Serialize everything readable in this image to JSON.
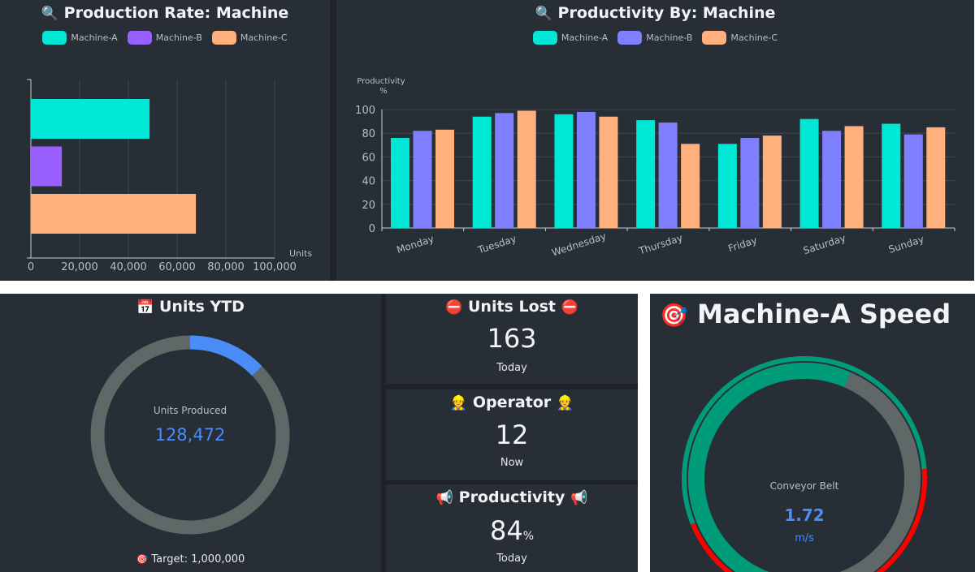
{
  "colors": {
    "machine_a": "#00e8d5",
    "machine_b_rate": "#9960ff",
    "machine_b_prod": "#7f80ff",
    "machine_c": "#ffb07d",
    "panel_bg": "#272e35",
    "accent_blue": "#4a8df8",
    "ring_gray": "#5f6767",
    "gauge_green": "#009c7a",
    "gauge_red": "#ff0000"
  },
  "production_rate": {
    "title": "Production Rate: Machine",
    "title_icon": "magnifier-icon",
    "legend": [
      "Machine-A",
      "Machine-B",
      "Machine-C"
    ]
  },
  "productivity_by": {
    "title": "Productivity By: Machine",
    "title_icon": "magnifier-icon",
    "legend": [
      "Machine-A",
      "Machine-B",
      "Machine-C"
    ]
  },
  "chart_data": [
    {
      "type": "bar",
      "orientation": "horizontal",
      "title": "Production Rate: Machine",
      "categories": [
        "Machine-A",
        "Machine-B",
        "Machine-C"
      ],
      "values": [
        48700,
        12700,
        67700
      ],
      "xlabel": "Units",
      "ylabel": "",
      "xlim": [
        0,
        100000
      ],
      "xticks": [
        "0",
        "20,000",
        "40,000",
        "60,000",
        "80,000",
        "100,000"
      ],
      "grid": true,
      "legend": "top-center"
    },
    {
      "type": "bar",
      "orientation": "vertical",
      "title": "Productivity By: Machine",
      "categories": [
        "Monday",
        "Tuesday",
        "Wednesday",
        "Thursday",
        "Friday",
        "Saturday",
        "Sunday"
      ],
      "series": [
        {
          "name": "Machine-A",
          "values": [
            76,
            94,
            96,
            91,
            71,
            92,
            88
          ]
        },
        {
          "name": "Machine-B",
          "values": [
            82,
            97,
            98,
            89,
            76,
            82,
            79
          ]
        },
        {
          "name": "Machine-C",
          "values": [
            83,
            99,
            94,
            71,
            78,
            86,
            85
          ]
        }
      ],
      "xlabel": "",
      "ylabel": "Productivity %",
      "ylabel_line1": "Productivity",
      "ylabel_line2": "%",
      "ylim": [
        0,
        100
      ],
      "yticks": [
        "0",
        "20",
        "40",
        "60",
        "80",
        "100"
      ],
      "grid": true,
      "legend": "top-center"
    }
  ],
  "units_ytd": {
    "title": "Units YTD",
    "title_icon": "calendar-icon",
    "center_label": "Units Produced",
    "value": "128,472",
    "value_num": 128472,
    "target_num": 1000000,
    "target_label": "Target: 1,000,000",
    "target_icon": "target-icon"
  },
  "units_lost": {
    "title": "Units Lost",
    "icon": "no-entry-icon",
    "value": "163",
    "sub": "Today"
  },
  "operator": {
    "title": "Operator",
    "icon": "worker-icon",
    "value": "12",
    "sub": "Now"
  },
  "productivity": {
    "title": "Productivity",
    "icon": "megaphone-icon",
    "value": "84",
    "unit": "%",
    "sub": "Today"
  },
  "speed": {
    "title": "Machine-A Speed",
    "title_icon": "target-icon",
    "label": "Conveyor Belt",
    "value": "1.72",
    "value_num": 1.72,
    "unit": "m/s",
    "min": 0,
    "max": 3,
    "low_threshold": 0.45,
    "high_threshold": 2.3
  }
}
